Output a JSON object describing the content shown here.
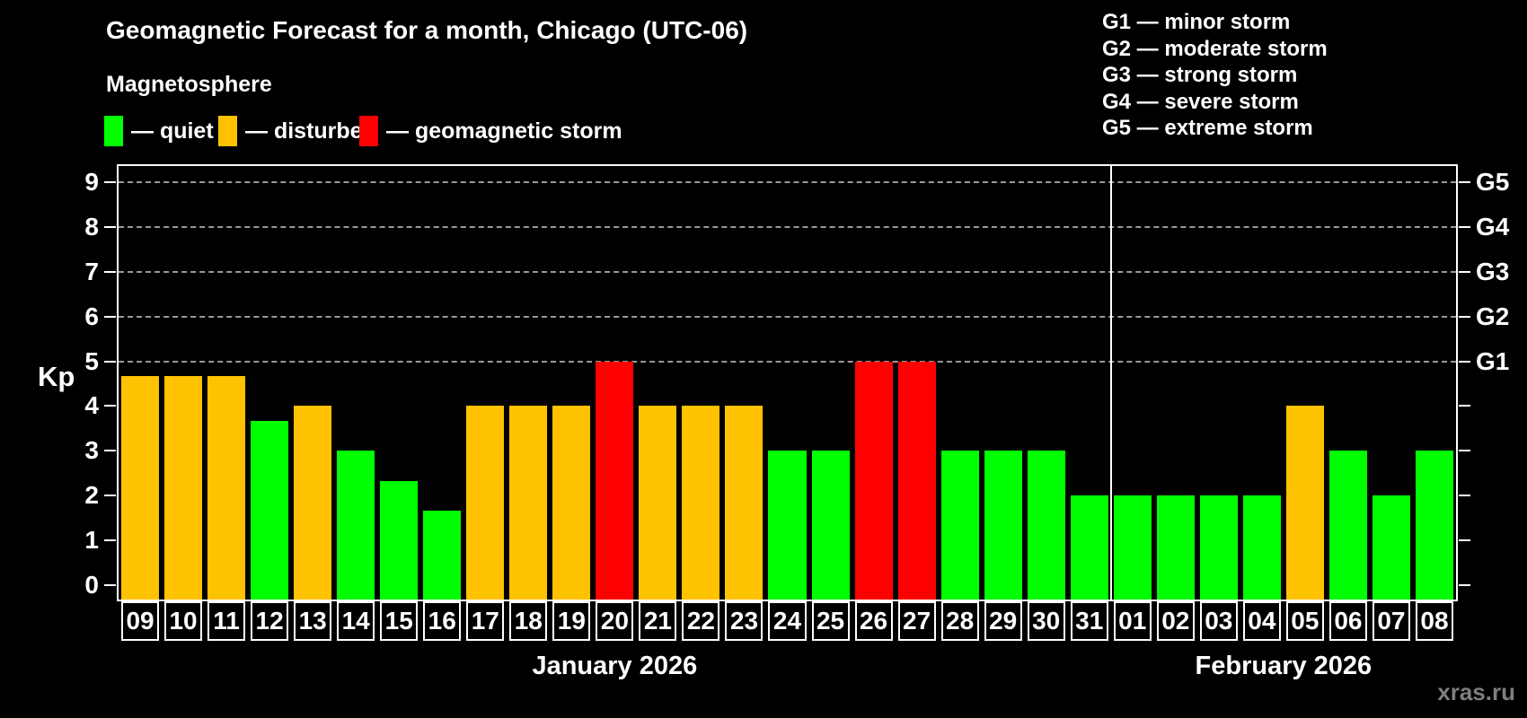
{
  "title": "Geomagnetic Forecast for a month, Chicago (UTC-06)",
  "subtitle": "Magnetosphere",
  "legend": {
    "items": [
      {
        "status": "quiet",
        "label": "— quiet",
        "color": "#00FF00",
        "x": 0
      },
      {
        "status": "disturbed",
        "label": "— disturbed",
        "color": "#FFC200",
        "x": 127
      },
      {
        "status": "storm",
        "label": "— geomagnetic storm",
        "color": "#FF0000",
        "x": 284
      }
    ]
  },
  "storm_scale_legend": [
    "G1 — minor storm",
    "G2 — moderate storm",
    "G3 — strong storm",
    "G4 — severe storm",
    "G5 — extreme storm"
  ],
  "watermark": "xras.ru",
  "chart_data": {
    "type": "bar",
    "title": "Geomagnetic Forecast for a month, Chicago (UTC-06)",
    "ylabel": "Kp",
    "ylim": [
      0,
      9
    ],
    "y_ticks": [
      0,
      1,
      2,
      3,
      4,
      5,
      6,
      7,
      8,
      9
    ],
    "gridlines_kp": [
      5,
      6,
      7,
      8,
      9
    ],
    "grid": "dashed horizontal at storm levels only",
    "legend_position": "top-left",
    "right_axis_labels": [
      {
        "label": "G1",
        "kp": 5
      },
      {
        "label": "G2",
        "kp": 6
      },
      {
        "label": "G3",
        "kp": 7
      },
      {
        "label": "G4",
        "kp": 8
      },
      {
        "label": "G5",
        "kp": 9
      }
    ],
    "months": [
      {
        "label": "January 2026",
        "days": 23
      },
      {
        "label": "February 2026",
        "days": 8
      }
    ],
    "days": [
      {
        "date": "09",
        "kp": 4.67,
        "status": "disturbed"
      },
      {
        "date": "10",
        "kp": 4.67,
        "status": "disturbed"
      },
      {
        "date": "11",
        "kp": 4.67,
        "status": "disturbed"
      },
      {
        "date": "12",
        "kp": 3.67,
        "status": "quiet"
      },
      {
        "date": "13",
        "kp": 4,
        "status": "disturbed"
      },
      {
        "date": "14",
        "kp": 3,
        "status": "quiet"
      },
      {
        "date": "15",
        "kp": 2.33,
        "status": "quiet"
      },
      {
        "date": "16",
        "kp": 1.67,
        "status": "quiet"
      },
      {
        "date": "17",
        "kp": 4,
        "status": "disturbed"
      },
      {
        "date": "18",
        "kp": 4,
        "status": "disturbed"
      },
      {
        "date": "19",
        "kp": 4,
        "status": "disturbed"
      },
      {
        "date": "20",
        "kp": 5,
        "status": "storm"
      },
      {
        "date": "21",
        "kp": 4,
        "status": "disturbed"
      },
      {
        "date": "22",
        "kp": 4,
        "status": "disturbed"
      },
      {
        "date": "23",
        "kp": 4,
        "status": "disturbed"
      },
      {
        "date": "24",
        "kp": 3,
        "status": "quiet"
      },
      {
        "date": "25",
        "kp": 3,
        "status": "quiet"
      },
      {
        "date": "26",
        "kp": 5,
        "status": "storm"
      },
      {
        "date": "27",
        "kp": 5,
        "status": "storm"
      },
      {
        "date": "28",
        "kp": 3,
        "status": "quiet"
      },
      {
        "date": "29",
        "kp": 3,
        "status": "quiet"
      },
      {
        "date": "30",
        "kp": 3,
        "status": "quiet"
      },
      {
        "date": "31",
        "kp": 2,
        "status": "quiet"
      },
      {
        "date": "01",
        "kp": 2,
        "status": "quiet"
      },
      {
        "date": "02",
        "kp": 2,
        "status": "quiet"
      },
      {
        "date": "03",
        "kp": 2,
        "status": "quiet"
      },
      {
        "date": "04",
        "kp": 2,
        "status": "quiet"
      },
      {
        "date": "05",
        "kp": 4,
        "status": "disturbed"
      },
      {
        "date": "06",
        "kp": 3,
        "status": "quiet"
      },
      {
        "date": "07",
        "kp": 2,
        "status": "quiet"
      },
      {
        "date": "08",
        "kp": 3,
        "status": "quiet"
      }
    ]
  },
  "colors": {
    "background": "#000000",
    "text": "#FFFFFF",
    "quiet": "#00FF00",
    "disturbed": "#FFC200",
    "storm": "#FF0000",
    "gridline": "#999999",
    "watermark": "#7F7F7F"
  }
}
